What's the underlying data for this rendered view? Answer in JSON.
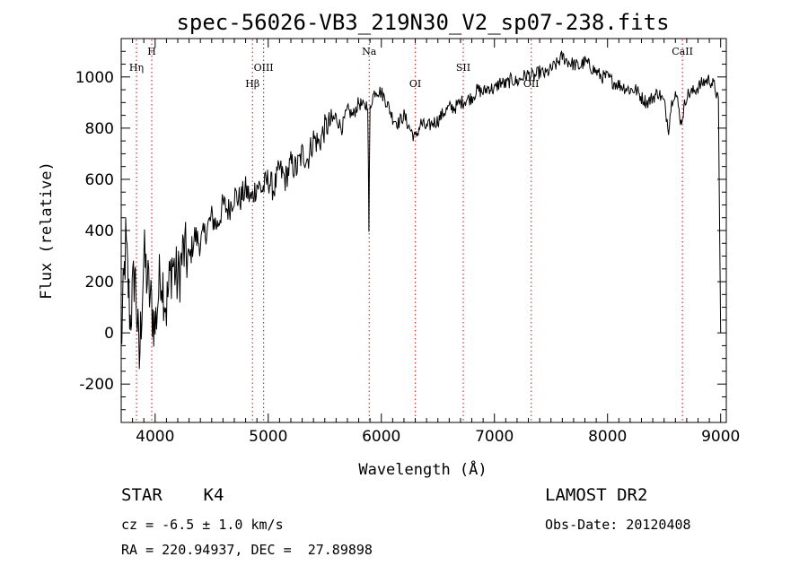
{
  "chart_data": {
    "type": "line",
    "title": "spec-56026-VB3_219N30_V2_sp07-238.fits",
    "xlabel": "Wavelength (Å)",
    "ylabel": "Flux (relative)",
    "xlim": [
      3700,
      9050
    ],
    "ylim": [
      -350,
      1150
    ],
    "x_ticks": [
      4000,
      5000,
      6000,
      7000,
      8000,
      9000
    ],
    "y_ticks": [
      -200,
      0,
      200,
      400,
      600,
      800,
      1000
    ],
    "grid": false,
    "series": [
      {
        "color": "#000000",
        "x": [
          3700,
          3740,
          3780,
          3820,
          3860,
          3900,
          3950,
          4000,
          4050,
          4100,
          4150,
          4200,
          4250,
          4300,
          4350,
          4400,
          4450,
          4500,
          4550,
          4600,
          4650,
          4700,
          4750,
          4800,
          4850,
          4900,
          4950,
          5000,
          5050,
          5100,
          5150,
          5200,
          5250,
          5300,
          5350,
          5400,
          5450,
          5500,
          5550,
          5600,
          5650,
          5700,
          5750,
          5800,
          5850,
          5880,
          5890,
          5900,
          5920,
          5950,
          6000,
          6050,
          6100,
          6150,
          6200,
          6250,
          6300,
          6350,
          6400,
          6450,
          6500,
          6550,
          6600,
          6650,
          6700,
          6750,
          6800,
          6850,
          6900,
          6950,
          7000,
          7050,
          7100,
          7150,
          7200,
          7250,
          7300,
          7350,
          7400,
          7450,
          7500,
          7550,
          7600,
          7650,
          7700,
          7750,
          7800,
          7850,
          7900,
          7950,
          8000,
          8050,
          8100,
          8150,
          8200,
          8250,
          8300,
          8350,
          8400,
          8450,
          8500,
          8520,
          8540,
          8560,
          8580,
          8600,
          8620,
          8650,
          8700,
          8750,
          8800,
          8850,
          8900,
          8950,
          8980,
          9000
        ],
        "y": [
          -50,
          350,
          50,
          250,
          -120,
          300,
          150,
          20,
          250,
          100,
          280,
          200,
          320,
          280,
          380,
          350,
          400,
          450,
          420,
          500,
          480,
          540,
          520,
          560,
          520,
          580,
          560,
          600,
          560,
          640,
          600,
          660,
          640,
          700,
          680,
          760,
          740,
          800,
          820,
          840,
          800,
          870,
          850,
          900,
          880,
          900,
          400,
          880,
          920,
          950,
          940,
          900,
          840,
          820,
          850,
          800,
          760,
          820,
          800,
          820,
          830,
          860,
          880,
          880,
          900,
          910,
          920,
          950,
          940,
          960,
          950,
          980,
          970,
          990,
          980,
          1000,
          1010,
          1000,
          1020,
          1010,
          1030,
          1050,
          1080,
          1060,
          1050,
          1040,
          1060,
          1040,
          1020,
          1000,
          1000,
          980,
          970,
          960,
          950,
          950,
          920,
          900,
          920,
          940,
          900,
          850,
          800,
          880,
          930,
          940,
          900,
          820,
          930,
          940,
          960,
          980,
          990,
          960,
          900,
          0
        ]
      }
    ],
    "line_markers": [
      {
        "label": "Hη",
        "x": 3835,
        "row": 2
      },
      {
        "label": "H",
        "x": 3970,
        "row": 1
      },
      {
        "label": "Hβ",
        "x": 4861,
        "row": 3
      },
      {
        "label": "OIII",
        "x": 4959,
        "row": 2
      },
      {
        "label": "Na",
        "x": 5893,
        "row": 1
      },
      {
        "label": "OI",
        "x": 6300,
        "row": 3
      },
      {
        "label": "SII",
        "x": 6724,
        "row": 2
      },
      {
        "label": "OII",
        "x": 7325,
        "row": 3
      },
      {
        "label": "CaII",
        "x": 8662,
        "row": 1
      }
    ],
    "marker_color": "#e03030"
  },
  "info": {
    "star_type": "STAR    K4",
    "survey": "LAMOST DR2",
    "cz": "cz = -6.5 ± 1.0 km/s",
    "obs_date": "Obs-Date: 20120408",
    "radec": "RA = 220.94937, DEC =  27.89898"
  }
}
